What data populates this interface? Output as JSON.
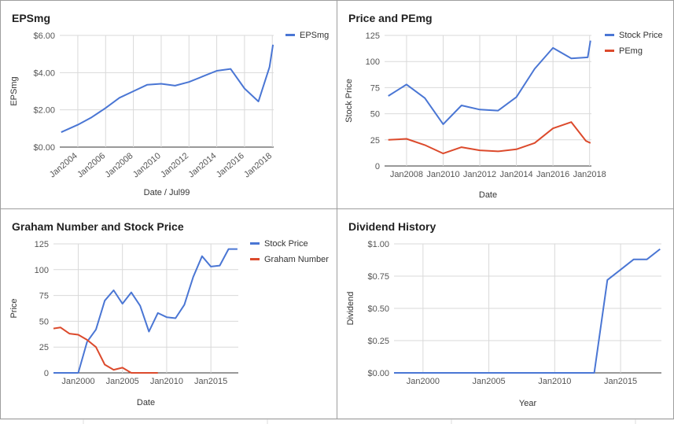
{
  "colors": {
    "blue": "#4a76d4",
    "red": "#dc4a2c",
    "grid": "#d9d9d9",
    "axis": "#333333",
    "label": "#555555"
  },
  "chart_data": [
    {
      "id": "eps",
      "type": "line",
      "title": "EPSmg",
      "xlabel": "Date / Jul99",
      "ylabel": "EPSmg",
      "xlim": [
        2002.7,
        2018.1
      ],
      "ylim": [
        0,
        6
      ],
      "x_ticks": [
        2004,
        2006,
        2008,
        2010,
        2012,
        2014,
        2016,
        2018
      ],
      "x_tick_labels": [
        "Jan2004",
        "Jan2006",
        "Jan2008",
        "Jan2010",
        "Jan2012",
        "Jan2014",
        "Jan2016",
        "Jan2018"
      ],
      "y_ticks": [
        0,
        2,
        4,
        6
      ],
      "y_tick_labels": [
        "$0.00",
        "$2.00",
        "$4.00",
        "$6.00"
      ],
      "legend_position": "right",
      "series": [
        {
          "name": "EPSmg",
          "color": "#4a76d4",
          "x": [
            2002.8,
            2004,
            2005,
            2006,
            2007,
            2008,
            2009,
            2010,
            2011,
            2012,
            2013,
            2014,
            2015,
            2016,
            2017,
            2017.8,
            2018.05
          ],
          "y": [
            0.8,
            1.2,
            1.6,
            2.1,
            2.65,
            3.0,
            3.35,
            3.4,
            3.3,
            3.5,
            3.8,
            4.1,
            4.2,
            3.15,
            2.45,
            4.3,
            5.5
          ]
        }
      ]
    },
    {
      "id": "pe",
      "type": "line",
      "title": "Price and PEmg",
      "xlabel": "Date",
      "ylabel": "Stock Price",
      "xlim": [
        2006.8,
        2018.1
      ],
      "ylim": [
        0,
        125
      ],
      "x_ticks": [
        2008,
        2010,
        2012,
        2014,
        2016,
        2018
      ],
      "x_tick_labels": [
        "Jan2008",
        "Jan2010",
        "Jan2012",
        "Jan2014",
        "Jan2016",
        "Jan2018"
      ],
      "y_ticks": [
        0,
        25,
        50,
        75,
        100,
        125
      ],
      "y_tick_labels": [
        "0",
        "25",
        "50",
        "75",
        "100",
        "125"
      ],
      "legend_position": "right",
      "series": [
        {
          "name": "Stock Price",
          "color": "#4a76d4",
          "x": [
            2007,
            2008,
            2009,
            2010,
            2011,
            2012,
            2013,
            2014,
            2015,
            2016,
            2017,
            2017.9,
            2018.05
          ],
          "y": [
            67,
            78,
            65,
            40,
            58,
            54,
            53,
            66,
            93,
            113,
            103,
            104,
            120
          ]
        },
        {
          "name": "PEmg",
          "color": "#dc4a2c",
          "x": [
            2007,
            2008,
            2009,
            2010,
            2011,
            2012,
            2013,
            2014,
            2015,
            2016,
            2017,
            2017.8,
            2018.05
          ],
          "y": [
            25,
            26,
            20,
            12,
            18,
            15,
            14,
            16,
            22,
            36,
            42,
            24,
            22
          ]
        }
      ]
    },
    {
      "id": "graham",
      "type": "line",
      "title": "Graham Number and Stock Price",
      "xlabel": "Date",
      "ylabel": "Price",
      "xlim": [
        1997.2,
        2018.1
      ],
      "ylim": [
        0,
        125
      ],
      "x_ticks": [
        2000,
        2005,
        2010,
        2015
      ],
      "x_tick_labels": [
        "Jan2000",
        "Jan2005",
        "Jan2010",
        "Jan2015"
      ],
      "y_ticks": [
        0,
        25,
        50,
        75,
        100,
        125
      ],
      "y_tick_labels": [
        "0",
        "25",
        "50",
        "75",
        "100",
        "125"
      ],
      "legend_position": "right",
      "series": [
        {
          "name": "Stock Price",
          "color": "#4a76d4",
          "x": [
            1997.2,
            1998,
            1999,
            2000,
            2001,
            2002,
            2003,
            2004,
            2005,
            2006,
            2007,
            2008,
            2009,
            2010,
            2011,
            2012,
            2013,
            2014,
            2015,
            2016,
            2017,
            2018
          ],
          "y": [
            0,
            0,
            0,
            0,
            30,
            42,
            70,
            80,
            67,
            78,
            65,
            40,
            58,
            54,
            53,
            66,
            93,
            113,
            103,
            104,
            120,
            120
          ]
        },
        {
          "name": "Graham Number",
          "color": "#dc4a2c",
          "x": [
            1997.2,
            1998,
            1999,
            2000,
            2001,
            2002,
            2003,
            2004,
            2005,
            2006,
            2007,
            2008,
            2009
          ],
          "y": [
            43,
            44,
            38,
            37,
            32,
            25,
            8,
            3,
            5,
            0,
            0,
            0,
            0
          ]
        }
      ]
    },
    {
      "id": "dividend",
      "type": "line",
      "title": "Dividend History",
      "xlabel": "Year",
      "ylabel": "Dividend",
      "xlim": [
        1997.8,
        2018.1
      ],
      "ylim": [
        0,
        1
      ],
      "x_ticks": [
        2000,
        2005,
        2010,
        2015
      ],
      "x_tick_labels": [
        "Jan2000",
        "Jan2005",
        "Jan2010",
        "Jan2015"
      ],
      "y_ticks": [
        0,
        0.25,
        0.5,
        0.75,
        1
      ],
      "y_tick_labels": [
        "$0.00",
        "$0.25",
        "$0.50",
        "$0.75",
        "$1.00"
      ],
      "legend_position": "none",
      "series": [
        {
          "name": "",
          "color": "#4a76d4",
          "x": [
            1997.8,
            2013,
            2014,
            2015,
            2016,
            2017,
            2018
          ],
          "y": [
            0,
            0,
            0.72,
            0.8,
            0.88,
            0.88,
            0.96
          ]
        }
      ]
    }
  ]
}
